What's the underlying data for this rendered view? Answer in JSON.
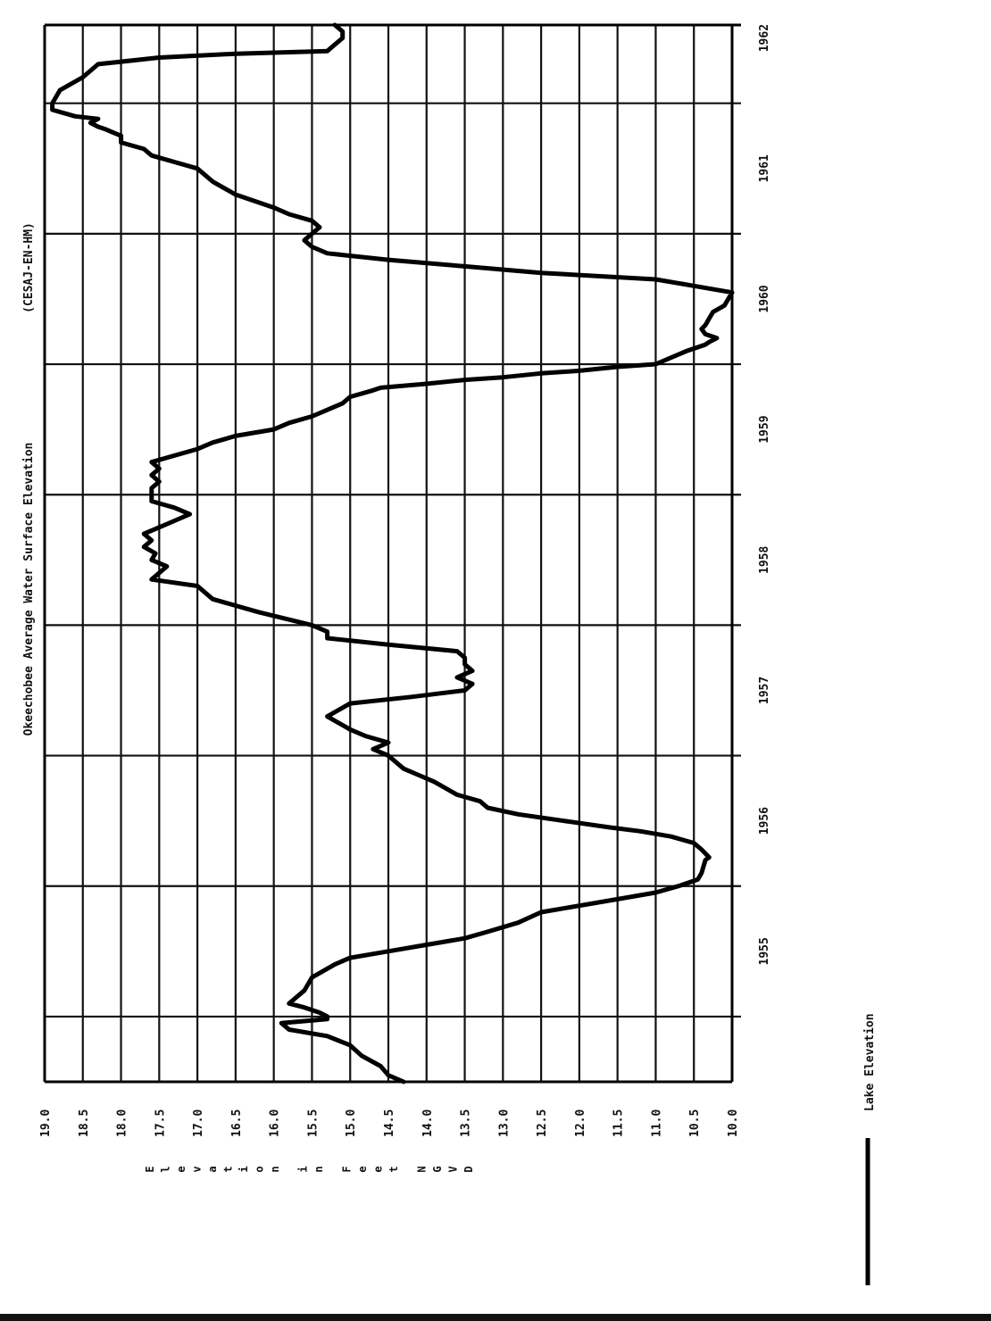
{
  "chart_data": {
    "type": "line",
    "title": "Okeechobee Average Water Surface Elevation",
    "source_tag": "(CESAJ-EN-HM)",
    "ylabel": "Elevation in Feet NGVD",
    "ylim": [
      10.0,
      19.0
    ],
    "yticks": [
      "19.0",
      "18.5",
      "18.0",
      "17.5",
      "17.0",
      "16.5",
      "16.0",
      "15.5",
      "15.0",
      "14.5",
      "14.0",
      "13.5",
      "13.0",
      "12.5",
      "12.0",
      "11.5",
      "11.0",
      "10.5",
      "10.0"
    ],
    "xlim": [
      1954.5,
      1962.6
    ],
    "xticks": [
      "1955",
      "1956",
      "1957",
      "1958",
      "1959",
      "1960",
      "1961",
      "1962"
    ],
    "grid": true,
    "legend_position": "bottom-left",
    "series": [
      {
        "name": "Lake Elevation",
        "color": "#000000",
        "x": [
          1954.5,
          1954.55,
          1954.62,
          1954.7,
          1954.78,
          1954.85,
          1954.9,
          1954.95,
          1954.98,
          1955.0,
          1955.03,
          1955.07,
          1955.1,
          1955.15,
          1955.2,
          1955.3,
          1955.4,
          1955.45,
          1955.5,
          1955.55,
          1955.6,
          1955.65,
          1955.72,
          1955.8,
          1955.85,
          1955.9,
          1955.95,
          1956.0,
          1956.05,
          1956.1,
          1956.2,
          1956.22,
          1956.28,
          1956.33,
          1956.38,
          1956.42,
          1956.45,
          1956.5,
          1956.55,
          1956.6,
          1956.65,
          1956.7,
          1956.8,
          1956.85,
          1956.9,
          1957.0,
          1957.05,
          1957.1,
          1957.15,
          1957.2,
          1957.3,
          1957.4,
          1957.45,
          1957.5,
          1957.55,
          1957.6,
          1957.65,
          1957.7,
          1957.75,
          1957.8,
          1957.85,
          1957.9,
          1957.95,
          1958.0,
          1958.1,
          1958.2,
          1958.3,
          1958.35,
          1958.4,
          1958.45,
          1958.5,
          1958.55,
          1958.6,
          1958.65,
          1958.7,
          1958.75,
          1958.8,
          1958.85,
          1958.9,
          1958.95,
          1959.0,
          1959.05,
          1959.1,
          1959.15,
          1959.2,
          1959.25,
          1959.3,
          1959.35,
          1959.4,
          1959.45,
          1959.5,
          1959.55,
          1959.6,
          1959.65,
          1959.7,
          1959.75,
          1959.8,
          1959.82,
          1959.85,
          1959.88,
          1959.9,
          1959.93,
          1959.95,
          1959.98,
          1960.0,
          1960.05,
          1960.1,
          1960.12,
          1960.15,
          1960.17,
          1960.2,
          1960.23,
          1960.27,
          1960.3,
          1960.35,
          1960.4,
          1960.45,
          1960.5,
          1960.55,
          1960.6,
          1960.65,
          1960.7,
          1960.75,
          1960.8,
          1960.85,
          1960.9,
          1960.95,
          1961.0,
          1961.05,
          1961.1,
          1961.15,
          1961.2,
          1961.3,
          1961.4,
          1961.5,
          1961.55,
          1961.6,
          1961.65,
          1961.7,
          1961.75,
          1961.8,
          1961.82,
          1961.85,
          1961.88,
          1961.9,
          1961.95,
          1962.0,
          1962.1,
          1962.2,
          1962.3,
          1962.35,
          1962.38,
          1962.4,
          1962.45,
          1962.5,
          1962.55,
          1962.6
        ],
        "y": [
          14.3,
          14.5,
          14.6,
          14.85,
          15.0,
          15.3,
          15.8,
          15.9,
          15.3,
          15.3,
          15.4,
          15.6,
          15.8,
          15.7,
          15.6,
          15.5,
          15.2,
          15.0,
          14.5,
          14.0,
          13.5,
          13.2,
          12.8,
          12.5,
          12.0,
          11.5,
          11.0,
          10.7,
          10.45,
          10.4,
          10.35,
          10.3,
          10.4,
          10.5,
          10.8,
          11.2,
          11.6,
          12.2,
          12.8,
          13.2,
          13.3,
          13.6,
          13.9,
          14.1,
          14.3,
          14.5,
          14.7,
          14.5,
          14.8,
          15.0,
          15.3,
          15.0,
          14.2,
          13.5,
          13.4,
          13.6,
          13.4,
          13.5,
          13.5,
          13.6,
          14.5,
          15.3,
          15.3,
          15.5,
          16.2,
          16.8,
          17.0,
          17.6,
          17.5,
          17.4,
          17.6,
          17.55,
          17.7,
          17.6,
          17.7,
          17.5,
          17.3,
          17.1,
          17.3,
          17.6,
          17.6,
          17.6,
          17.5,
          17.6,
          17.5,
          17.6,
          17.3,
          17.0,
          16.8,
          16.5,
          16.0,
          15.8,
          15.5,
          15.3,
          15.1,
          15.0,
          14.7,
          14.6,
          14.0,
          13.5,
          13.0,
          12.5,
          12.0,
          11.5,
          11.0,
          10.8,
          10.6,
          10.5,
          10.35,
          10.3,
          10.2,
          10.35,
          10.4,
          10.35,
          10.3,
          10.25,
          10.1,
          10.05,
          10.0,
          10.5,
          11.0,
          12.5,
          13.5,
          14.5,
          15.3,
          15.5,
          15.6,
          15.5,
          15.4,
          15.5,
          15.8,
          16.0,
          16.5,
          16.8,
          17.0,
          17.3,
          17.6,
          17.7,
          18.0,
          18.0,
          18.2,
          18.3,
          18.4,
          18.3,
          18.6,
          18.9,
          18.9,
          18.8,
          18.5,
          18.3,
          17.5,
          16.5,
          15.3,
          15.2,
          15.1,
          15.1,
          15.2
        ],
        "note_values_orientation": "x=time in years, y=elevation in feet"
      }
    ],
    "legend": [
      {
        "label": "Lake Elevation"
      }
    ]
  }
}
